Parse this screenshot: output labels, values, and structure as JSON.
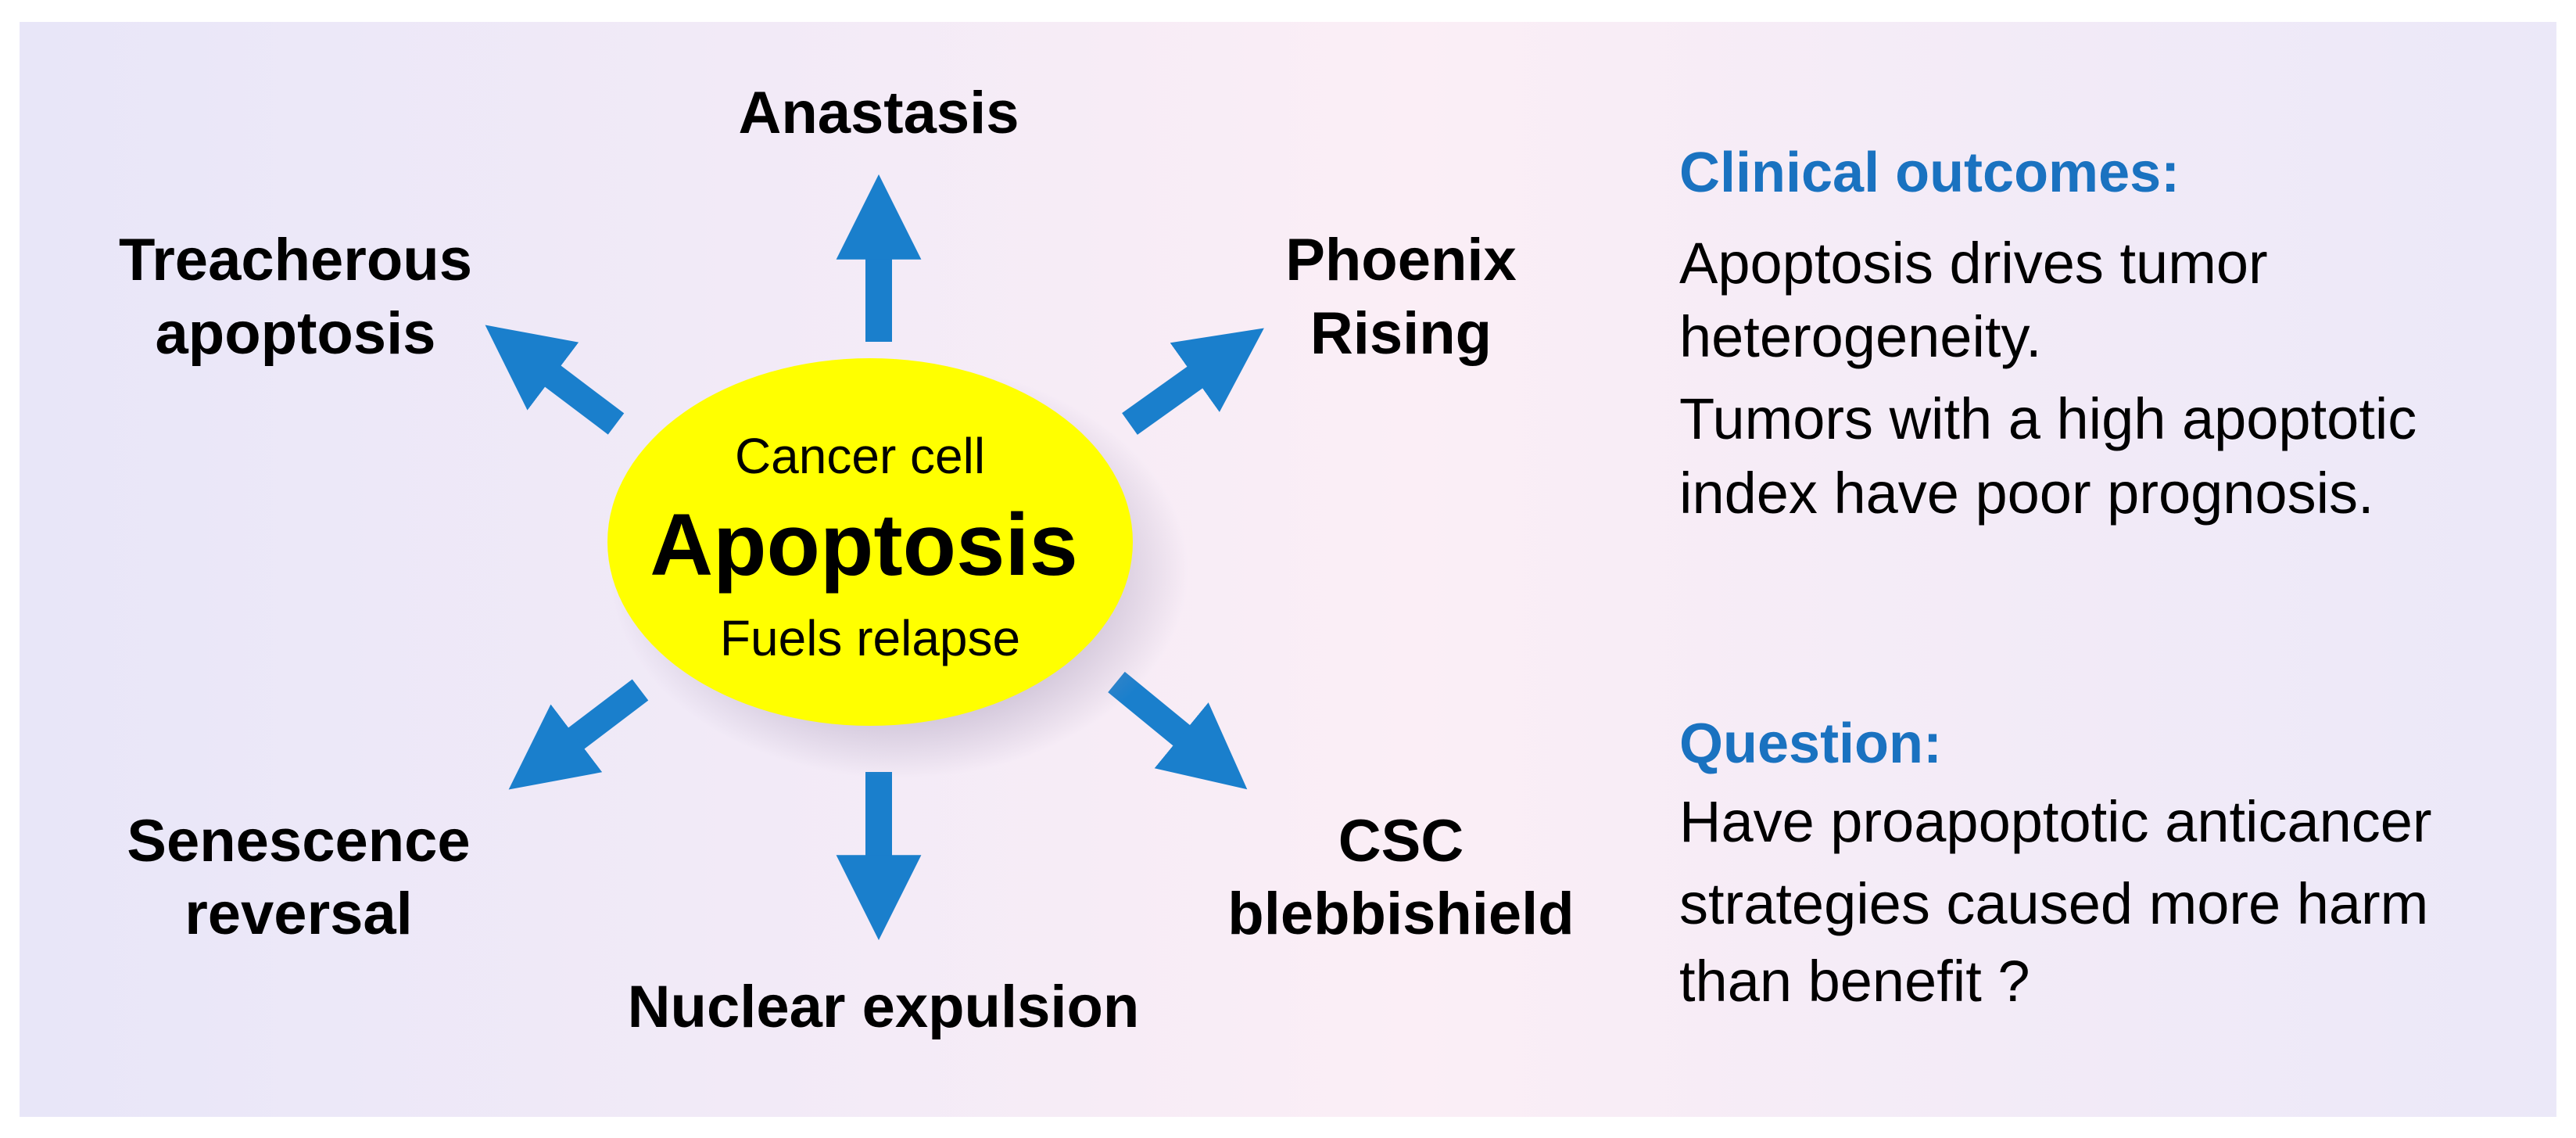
{
  "colors": {
    "arrow": "#1a7fcc",
    "heading": "#1a72c0",
    "ellipse": "#ffff00",
    "background_left": "#e8e6f8",
    "background_center": "#fbeef6",
    "background_right": "#ebe8f8"
  },
  "center": {
    "top": "Cancer cell",
    "main": "Apoptosis",
    "bottom": "Fuels relapse"
  },
  "outcomes": {
    "top": "Anastasis",
    "top_left": [
      "Treacherous",
      "apoptosis"
    ],
    "top_right": [
      "Phoenix",
      "Rising"
    ],
    "bottom_left": [
      "Senescence",
      "reversal"
    ],
    "bottom_right": [
      "CSC",
      "blebbishield"
    ],
    "bottom": "Nuclear expulsion"
  },
  "clinical": {
    "heading": "Clinical outcomes:",
    "lines": [
      "Apoptosis drives tumor",
      "heterogeneity.",
      "Tumors with a high apoptotic",
      "index have poor prognosis."
    ]
  },
  "question": {
    "heading": "Question:",
    "lines": [
      "Have proapoptotic anticancer",
      "strategies caused more harm",
      "than benefit ?"
    ]
  }
}
